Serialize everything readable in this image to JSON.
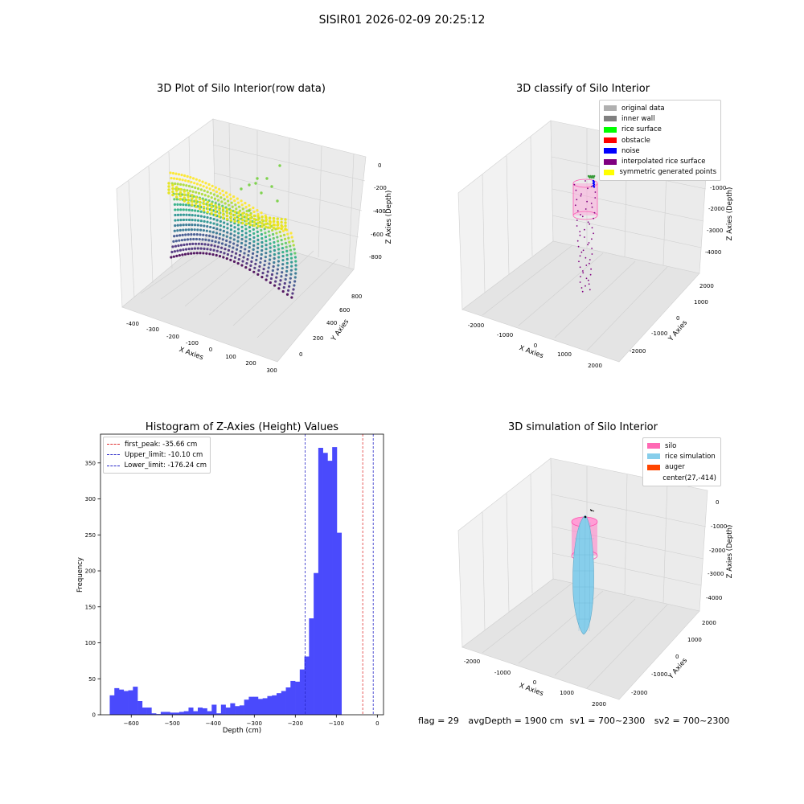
{
  "suptitle": "SISIR01 2026-02-09 20:25:12",
  "footer": {
    "flag": "flag = 29",
    "avg": "avgDepth = 1900 cm",
    "sv1": "sv1 = 700~2300",
    "sv2": "sv2 = 700~2300"
  },
  "colors": {
    "hist": "#4a4afc",
    "first_peak": "#e03030",
    "limits": "#2626c8"
  },
  "chart_data": [
    {
      "type": "scatter",
      "title": "3D Plot of Silo Interior(row data)",
      "projection": "3d",
      "xlabel": "X Axies",
      "ylabel": "Y Axies",
      "zlabel": "Z Axies (Depth)",
      "xticks": [
        "-400",
        "-300",
        "-200",
        "-100",
        "0",
        "100",
        "200",
        "300"
      ],
      "yticks": [
        "0",
        "200",
        "400",
        "600",
        "800"
      ],
      "zticks": [
        "0",
        "-200",
        "-400",
        "-600",
        "-800"
      ],
      "colormap": "viridis"
    },
    {
      "type": "scatter",
      "title": "3D classify of Silo Interior",
      "projection": "3d",
      "xlabel": "X Axies",
      "ylabel": "Y Axies",
      "zlabel": "Z Axies (Depth)",
      "xticks": [
        "-2000",
        "-1000",
        "0",
        "1000",
        "2000"
      ],
      "yticks": [
        "-2000",
        "-1000",
        "0",
        "1000",
        "2000"
      ],
      "zticks": [
        "-1000",
        "-2000",
        "-3000",
        "-4000"
      ],
      "legend_position": "top-right",
      "legend": [
        {
          "label": "original data",
          "color": "#b0b0b0"
        },
        {
          "label": "inner wall",
          "color": "#808080"
        },
        {
          "label": "rice surface",
          "color": "#00ff00"
        },
        {
          "label": "obstacle",
          "color": "#ff0000"
        },
        {
          "label": "noise",
          "color": "#0000ff"
        },
        {
          "label": "interpolated rice surface",
          "color": "#800080"
        },
        {
          "label": "symmetric generated points",
          "color": "#ffff00"
        }
      ]
    },
    {
      "type": "bar",
      "title": "Histogram of Z-Axies (Height) Values",
      "xlabel": "Depth (cm)",
      "ylabel": "Frequency",
      "xlim": [
        -675,
        15
      ],
      "ylim": [
        0,
        390
      ],
      "xticks": [
        -600,
        -500,
        -400,
        -300,
        -200,
        -100,
        0
      ],
      "xtick_labels": [
        "−600",
        "−500",
        "−400",
        "−300",
        "−200",
        "−100",
        "0"
      ],
      "yticks": [
        0,
        50,
        100,
        150,
        200,
        250,
        300,
        350
      ],
      "bin_width": 11.3,
      "bin_start": -652.5,
      "values": [
        27,
        37,
        35,
        33,
        34,
        39,
        19,
        10,
        10,
        2,
        1,
        4,
        4,
        3,
        3,
        4,
        5,
        10,
        5,
        10,
        9,
        5,
        14,
        2,
        14,
        10,
        16,
        12,
        13,
        21,
        25,
        25,
        22,
        23,
        26,
        27,
        30,
        33,
        38,
        47,
        46,
        63,
        81,
        134,
        197,
        371,
        364,
        353,
        372,
        253
      ],
      "vlines": [
        {
          "label": "first_peak: -35.66 cm",
          "x": -35.66,
          "color": "#e03030"
        },
        {
          "label": "Upper_limit: -10.10 cm",
          "x": -10.1,
          "color": "#2626c8"
        },
        {
          "label": "Lower_limit: -176.24 cm",
          "x": -176.24,
          "color": "#2626c8"
        }
      ],
      "legend_position": "top-left"
    },
    {
      "type": "scatter",
      "title": "3D simulation of Silo Interior",
      "projection": "3d",
      "xlabel": "X Axies",
      "ylabel": "Y Axies",
      "zlabel": "Z Axies (Depth)",
      "xticks": [
        "-2000",
        "-1000",
        "0",
        "1000",
        "2000"
      ],
      "yticks": [
        "-2000",
        "-1000",
        "0",
        "1000",
        "2000"
      ],
      "zticks": [
        "0",
        "-1000",
        "-2000",
        "-3000",
        "-4000"
      ],
      "legend_position": "top-right",
      "legend": [
        {
          "label": "silo",
          "color": "#ff69b4"
        },
        {
          "label": "rice simulation",
          "color": "#87ceeb"
        },
        {
          "label": "auger",
          "color": "#ff4500"
        },
        {
          "label": "center(27,-414)",
          "color": ""
        }
      ]
    }
  ]
}
